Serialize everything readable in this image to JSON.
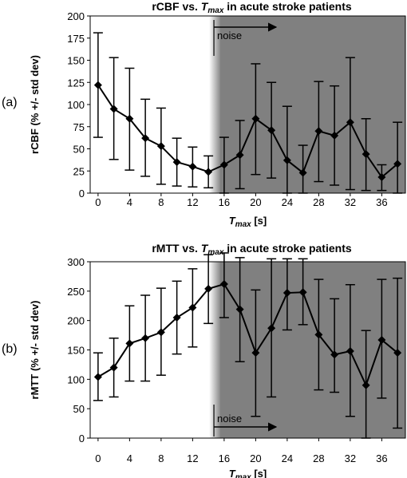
{
  "chart_data": [
    {
      "type": "line",
      "panel_label": "(a)",
      "title": "rCBF vs. ",
      "title_var": "T",
      "title_sub": "max",
      "title_suffix": " in acute stroke patients",
      "xlabel_var": "T",
      "xlabel_sub": "max",
      "xlabel_unit": " [s]",
      "ylabel": "rCBF (% +/- std dev)",
      "xlim": [
        -1,
        39
      ],
      "ylim": [
        0,
        200
      ],
      "xticks": [
        "0",
        "4",
        "8",
        "12",
        "16",
        "20",
        "24",
        "28",
        "32",
        "36"
      ],
      "xtick_values": [
        0,
        4,
        8,
        12,
        16,
        20,
        24,
        28,
        32,
        36
      ],
      "yticks": [
        "0",
        "25",
        "50",
        "75",
        "100",
        "125",
        "150",
        "175",
        "200"
      ],
      "ytick_values": [
        0,
        25,
        50,
        75,
        100,
        125,
        150,
        175,
        200
      ],
      "noise_label": "noise",
      "noise_start": 14.7,
      "noise_arrow_position": "top",
      "series": [
        {
          "x": [
            0,
            2,
            4,
            6,
            8,
            10,
            12,
            14,
            16,
            18,
            20,
            22,
            24,
            26,
            28,
            30,
            32,
            34,
            36,
            38
          ],
          "y": [
            122,
            95,
            84,
            62,
            53,
            35,
            30,
            24,
            32,
            43,
            84,
            71,
            37,
            23,
            70,
            65,
            80,
            44,
            18,
            33
          ],
          "lower": [
            63,
            38,
            26,
            19,
            10,
            8,
            7,
            6,
            0,
            5,
            21,
            17,
            0,
            0,
            13,
            9,
            4,
            3,
            3,
            0
          ],
          "upper": [
            181,
            153,
            141,
            106,
            96,
            62,
            52,
            42,
            63,
            82,
            146,
            125,
            98,
            54,
            126,
            121,
            153,
            84,
            32,
            80
          ]
        }
      ],
      "colors": {
        "line": "#000000",
        "noise_fill": "#808080",
        "background": "#ffffff"
      }
    },
    {
      "type": "line",
      "panel_label": "(b)",
      "title": "rMTT vs. ",
      "title_var": "T",
      "title_sub": "max",
      "title_suffix": " in acute stroke patients",
      "xlabel_var": "T",
      "xlabel_sub": "max",
      "xlabel_unit": " [s]",
      "ylabel": "rMTT (% +/- std dev)",
      "xlim": [
        -1,
        39
      ],
      "ylim": [
        0,
        300
      ],
      "xticks": [
        "0",
        "4",
        "8",
        "12",
        "16",
        "20",
        "24",
        "28",
        "32",
        "36"
      ],
      "xtick_values": [
        0,
        4,
        8,
        12,
        16,
        20,
        24,
        28,
        32,
        36
      ],
      "yticks": [
        "0",
        "50",
        "100",
        "150",
        "200",
        "250",
        "300"
      ],
      "ytick_values": [
        0,
        50,
        100,
        150,
        200,
        250,
        300
      ],
      "noise_label": "noise",
      "noise_start": 14.7,
      "noise_arrow_position": "bottom",
      "series": [
        {
          "x": [
            0,
            2,
            4,
            6,
            8,
            10,
            12,
            14,
            16,
            18,
            20,
            22,
            24,
            26,
            28,
            30,
            32,
            34,
            36,
            38
          ],
          "y": [
            104,
            120,
            161,
            170,
            180,
            205,
            222,
            254,
            262,
            219,
            145,
            187,
            247,
            248,
            176,
            142,
            148,
            90,
            167,
            145
          ],
          "lower": [
            64,
            70,
            97,
            97,
            107,
            143,
            155,
            195,
            205,
            130,
            37,
            70,
            184,
            193,
            82,
            78,
            37,
            0,
            68,
            17
          ],
          "upper": [
            145,
            170,
            225,
            243,
            255,
            267,
            288,
            312,
            320,
            307,
            252,
            305,
            305,
            305,
            270,
            237,
            261,
            183,
            270,
            272
          ]
        }
      ],
      "colors": {
        "line": "#000000",
        "noise_fill": "#808080",
        "background": "#ffffff"
      }
    }
  ]
}
